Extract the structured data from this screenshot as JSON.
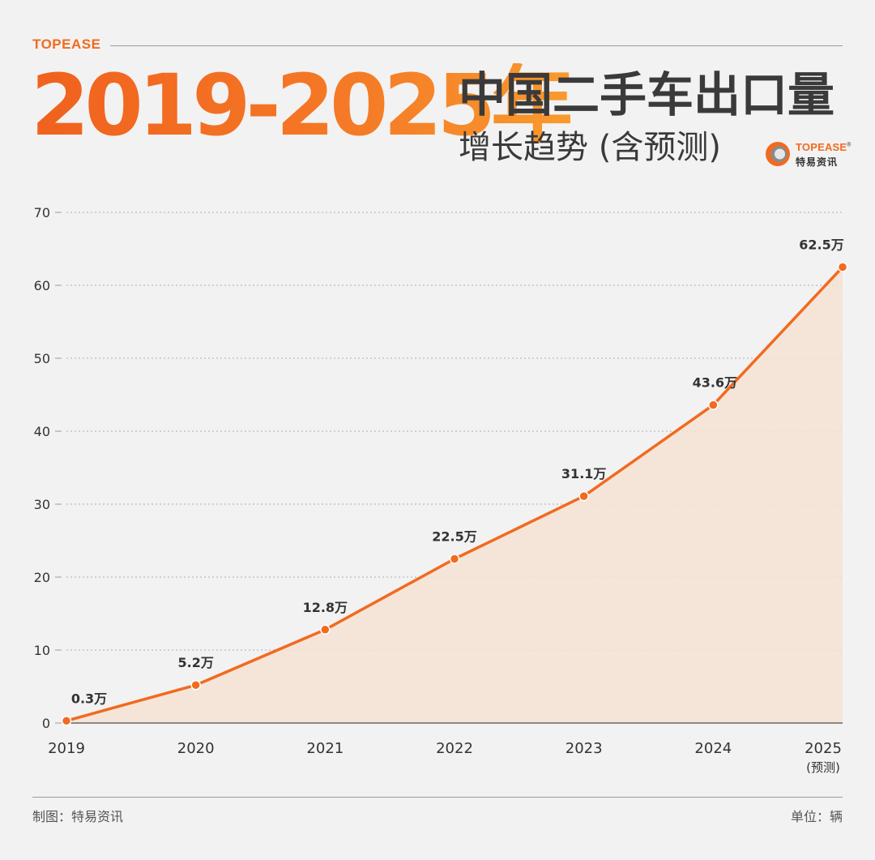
{
  "header": {
    "brand_small": "TOPEASE",
    "years_title": "2019-2025年",
    "title_main": "中国二手车出口量",
    "title_sub": "增长趋势 (含预测)",
    "logo_en": "TOPEASE",
    "logo_reg": "®",
    "logo_cn": "特易资讯"
  },
  "colors": {
    "accent": "#f26a1f",
    "fill": "#f5e3d4",
    "grid": "#bdbdbd",
    "text": "#333333"
  },
  "chart_data": {
    "type": "area",
    "title": "",
    "xlabel": "",
    "ylabel": "",
    "categories": [
      "2019",
      "2020",
      "2021",
      "2022",
      "2023",
      "2024",
      "2025"
    ],
    "category_sublabels": [
      "",
      "",
      "",
      "",
      "",
      "",
      "(预测)"
    ],
    "values": [
      0.3,
      5.2,
      12.8,
      22.5,
      31.1,
      43.6,
      62.5
    ],
    "data_labels": [
      "0.3万",
      "5.2万",
      "12.8万",
      "22.5万",
      "31.1万",
      "43.6万",
      "62.5万"
    ],
    "y_ticks": [
      0,
      10,
      20,
      30,
      40,
      50,
      60,
      70
    ],
    "ylim": [
      0,
      70
    ],
    "grid": true
  },
  "footer": {
    "left": "制图：特易资讯",
    "right": "单位：辆"
  }
}
